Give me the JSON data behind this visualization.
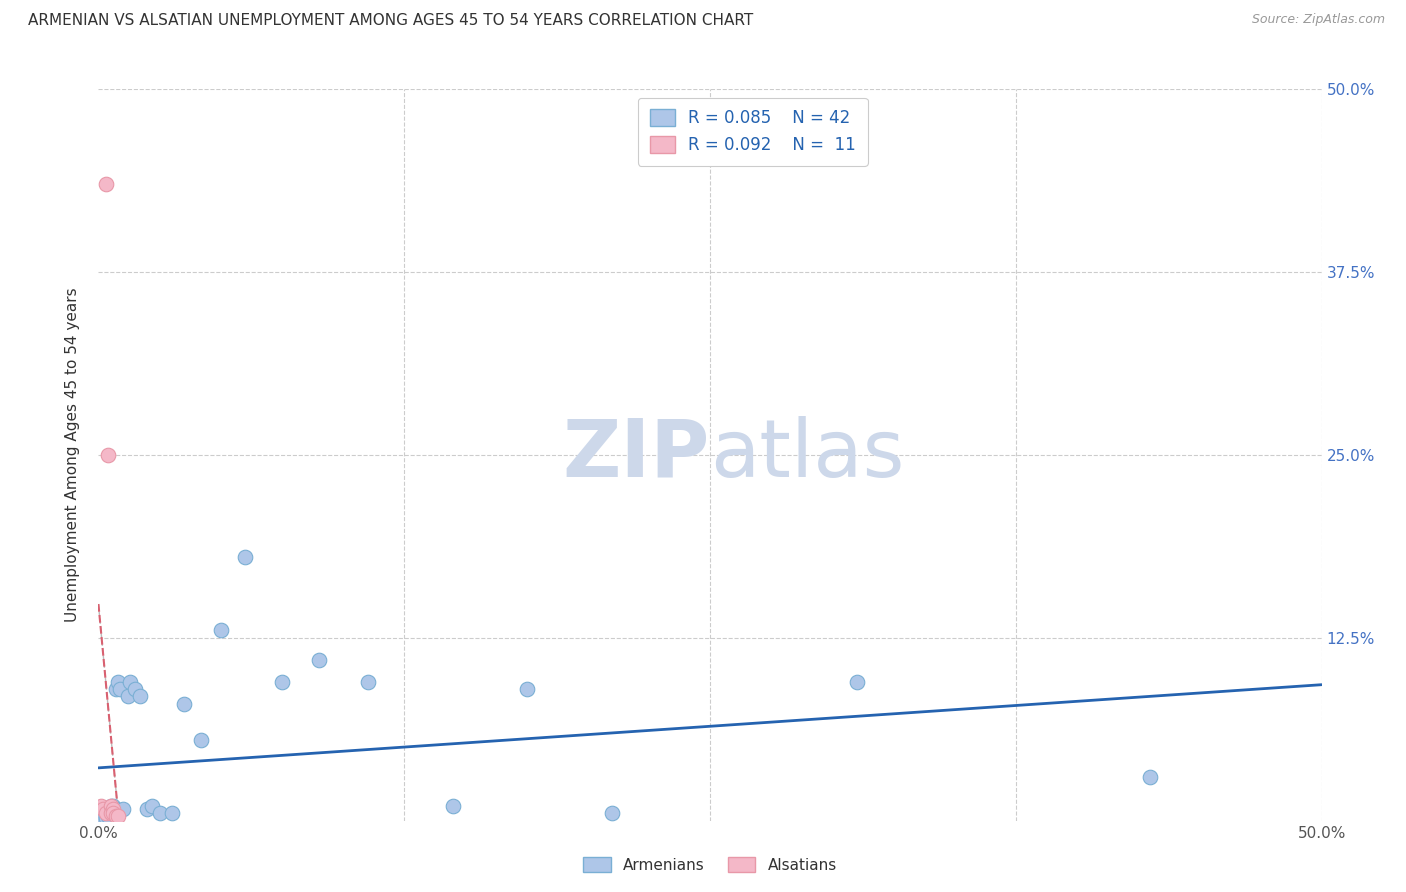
{
  "title": "ARMENIAN VS ALSATIAN UNEMPLOYMENT AMONG AGES 45 TO 54 YEARS CORRELATION CHART",
  "source": "Source: ZipAtlas.com",
  "ylabel": "Unemployment Among Ages 45 to 54 years",
  "xlim": [
    0,
    0.5
  ],
  "ylim": [
    0,
    0.5
  ],
  "armenian_R": 0.085,
  "armenian_N": 42,
  "alsatian_R": 0.092,
  "alsatian_N": 11,
  "armenian_color": "#aec6e8",
  "alsatian_color": "#f4b8c8",
  "armenian_line_color": "#2563b0",
  "alsatian_line_color": "#d96070",
  "legend_text_color": "#2563b0",
  "title_color": "#333333",
  "background_color": "#ffffff",
  "grid_color": "#cccccc",
  "watermark_color": "#cdd8ea",
  "armenians_x": [
    0.001,
    0.001,
    0.002,
    0.002,
    0.002,
    0.003,
    0.003,
    0.003,
    0.003,
    0.004,
    0.004,
    0.004,
    0.005,
    0.005,
    0.005,
    0.006,
    0.006,
    0.007,
    0.007,
    0.008,
    0.009,
    0.01,
    0.012,
    0.013,
    0.015,
    0.017,
    0.02,
    0.022,
    0.025,
    0.03,
    0.035,
    0.042,
    0.05,
    0.06,
    0.075,
    0.09,
    0.11,
    0.145,
    0.175,
    0.21,
    0.31,
    0.43
  ],
  "armenians_y": [
    0.005,
    0.003,
    0.005,
    0.003,
    0.002,
    0.008,
    0.005,
    0.003,
    0.002,
    0.007,
    0.005,
    0.003,
    0.01,
    0.008,
    0.005,
    0.01,
    0.008,
    0.09,
    0.008,
    0.095,
    0.09,
    0.008,
    0.085,
    0.095,
    0.09,
    0.085,
    0.008,
    0.01,
    0.005,
    0.005,
    0.08,
    0.055,
    0.13,
    0.18,
    0.095,
    0.11,
    0.095,
    0.01,
    0.09,
    0.005,
    0.095,
    0.03
  ],
  "alsatians_x": [
    0.001,
    0.002,
    0.003,
    0.003,
    0.004,
    0.005,
    0.005,
    0.006,
    0.006,
    0.007,
    0.008
  ],
  "alsatians_y": [
    0.01,
    0.008,
    0.435,
    0.005,
    0.25,
    0.01,
    0.005,
    0.008,
    0.005,
    0.003,
    0.003
  ],
  "marker_size": 110,
  "marker_linewidth": 0.8,
  "marker_edge_color_armenian": "#7aafd4",
  "marker_edge_color_alsatian": "#e898a8"
}
